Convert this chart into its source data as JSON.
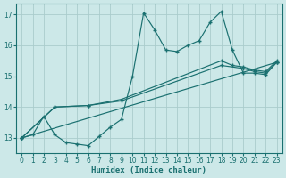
{
  "title": "",
  "xlabel": "Humidex (Indice chaleur)",
  "ylabel": "",
  "bg_color": "#cce8e8",
  "line_color": "#1a7070",
  "grid_color": "#aacccc",
  "xlim": [
    -0.5,
    23.5
  ],
  "ylim": [
    12.5,
    17.35
  ],
  "yticks": [
    13,
    14,
    15,
    16,
    17
  ],
  "xticks": [
    0,
    1,
    2,
    3,
    4,
    5,
    6,
    7,
    8,
    9,
    10,
    11,
    12,
    13,
    14,
    15,
    16,
    17,
    18,
    19,
    20,
    21,
    22,
    23
  ],
  "lines": [
    {
      "x": [
        0,
        1,
        2,
        3,
        4,
        5,
        6,
        7,
        8,
        9,
        10,
        11,
        12,
        13,
        14,
        15,
        16,
        17,
        18,
        19,
        20,
        21,
        22,
        23
      ],
      "y": [
        13.0,
        13.1,
        13.7,
        13.1,
        12.85,
        12.8,
        12.75,
        13.05,
        13.35,
        13.6,
        15.0,
        17.05,
        16.5,
        15.85,
        15.8,
        16.0,
        16.15,
        16.75,
        17.1,
        15.85,
        15.1,
        15.1,
        15.05,
        15.45
      ]
    },
    {
      "x": [
        0,
        23
      ],
      "y": [
        13.0,
        15.45
      ]
    },
    {
      "x": [
        0,
        3,
        6,
        9,
        18,
        20,
        21,
        22,
        23
      ],
      "y": [
        13.0,
        14.0,
        14.05,
        14.2,
        15.35,
        15.25,
        15.15,
        15.1,
        15.45
      ]
    },
    {
      "x": [
        0,
        3,
        6,
        9,
        18,
        19,
        20,
        21,
        22,
        23
      ],
      "y": [
        13.0,
        14.0,
        14.05,
        14.25,
        15.5,
        15.35,
        15.3,
        15.2,
        15.15,
        15.5
      ]
    }
  ]
}
